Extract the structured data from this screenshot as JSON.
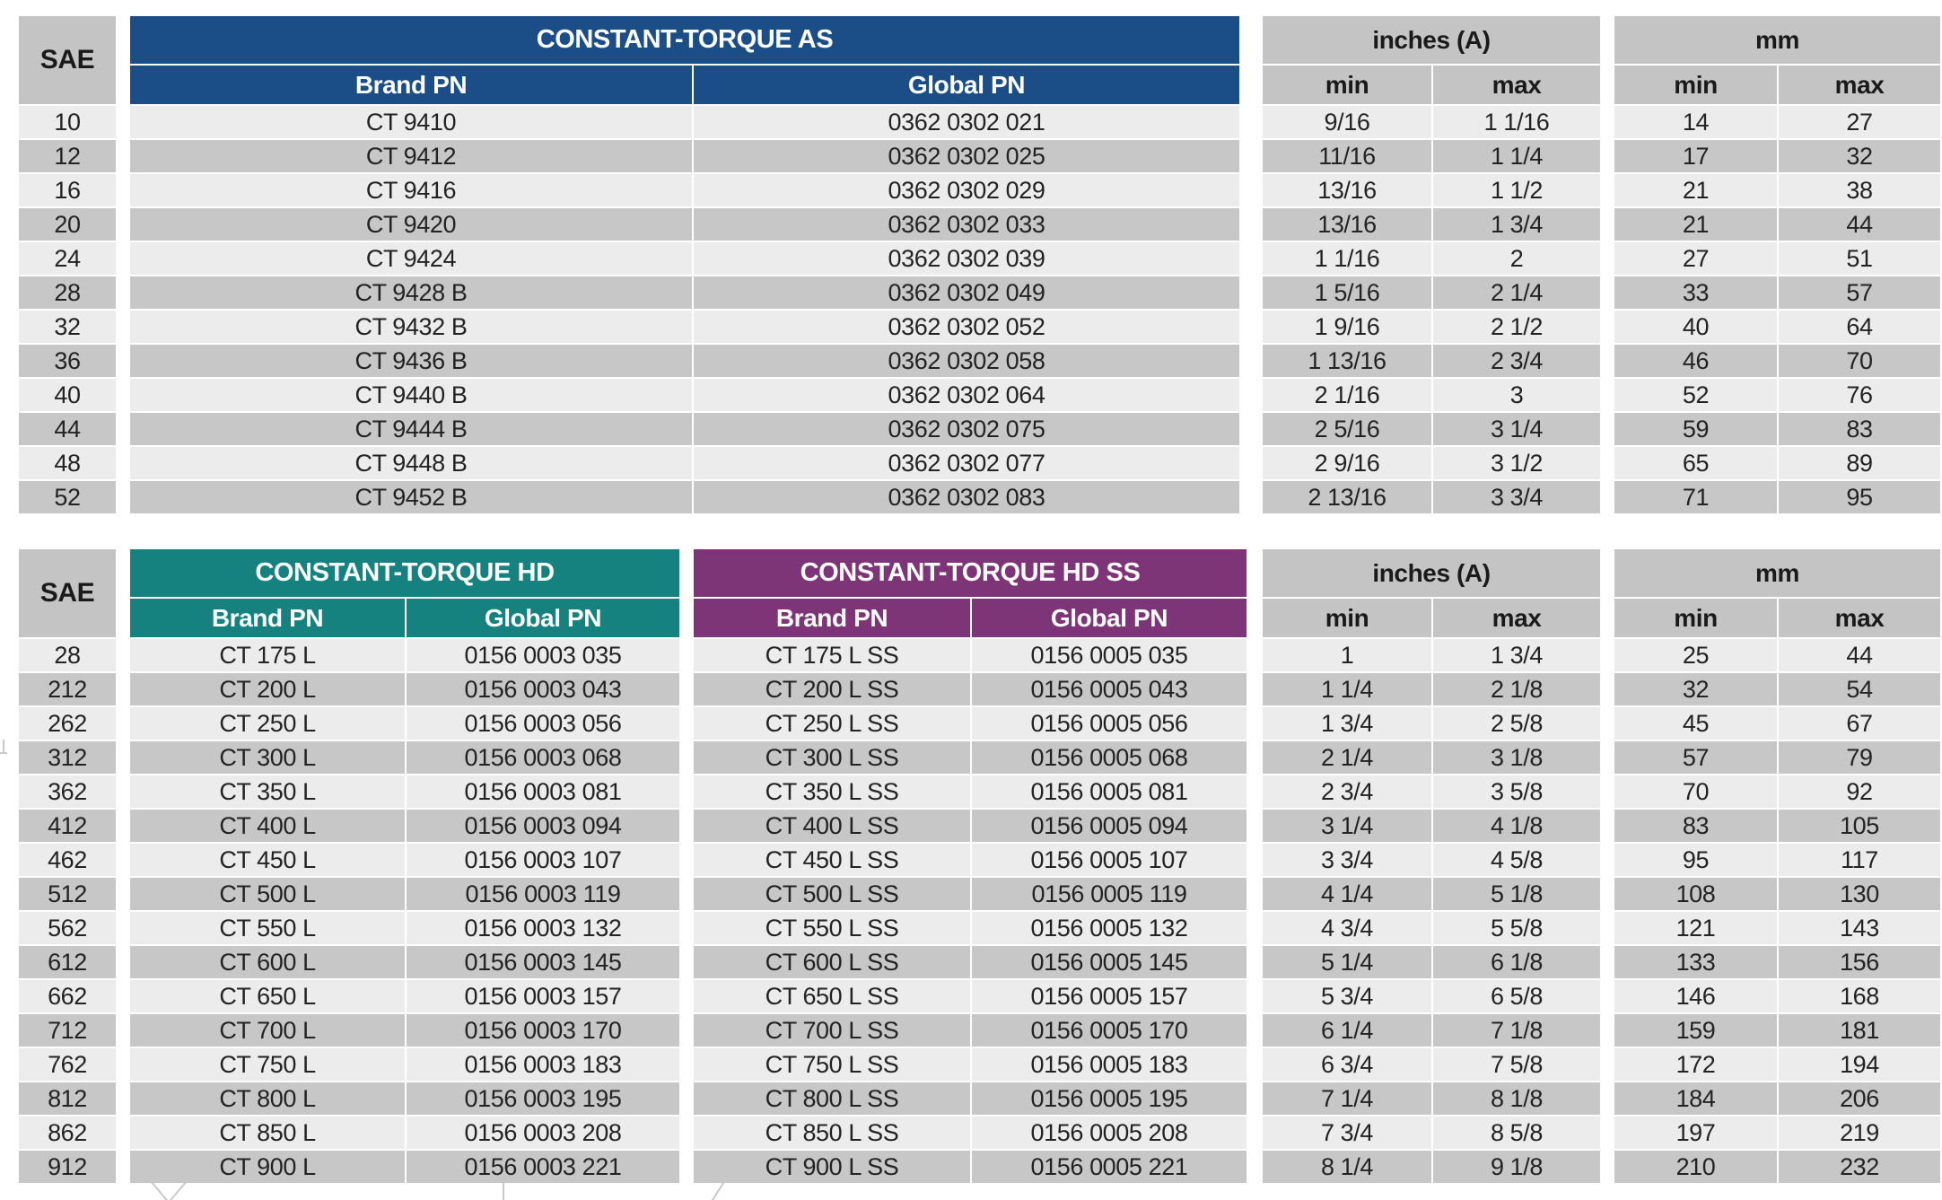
{
  "colors": {
    "blue": "#1b4e87",
    "teal": "#15827f",
    "purple": "#7d3578",
    "header-gray": "#c4c4c4",
    "row-light": "#ececec",
    "row-dark": "#c7c7c7",
    "text-dark": "#232323"
  },
  "table_as": {
    "sae_label": "SAE",
    "title": "CONSTANT-TORQUE AS",
    "brand_pn_label": "Brand PN",
    "global_pn_label": "Global PN",
    "inches_label": "inches (A)",
    "mm_label": "mm",
    "min_label": "min",
    "max_label": "max",
    "rows": [
      {
        "sae": "10",
        "brand_pn": "CT 9410",
        "global_pn": "0362 0302 021",
        "in_min": "9/16",
        "in_max": "1 1/16",
        "mm_min": "14",
        "mm_max": "27"
      },
      {
        "sae": "12",
        "brand_pn": "CT 9412",
        "global_pn": "0362 0302 025",
        "in_min": "11/16",
        "in_max": "1 1/4",
        "mm_min": "17",
        "mm_max": "32"
      },
      {
        "sae": "16",
        "brand_pn": "CT 9416",
        "global_pn": "0362 0302 029",
        "in_min": "13/16",
        "in_max": "1 1/2",
        "mm_min": "21",
        "mm_max": "38"
      },
      {
        "sae": "20",
        "brand_pn": "CT 9420",
        "global_pn": "0362 0302 033",
        "in_min": "13/16",
        "in_max": "1 3/4",
        "mm_min": "21",
        "mm_max": "44"
      },
      {
        "sae": "24",
        "brand_pn": "CT 9424",
        "global_pn": "0362 0302 039",
        "in_min": "1 1/16",
        "in_max": "2",
        "mm_min": "27",
        "mm_max": "51"
      },
      {
        "sae": "28",
        "brand_pn": "CT 9428 B",
        "global_pn": "0362 0302 049",
        "in_min": "1 5/16",
        "in_max": "2 1/4",
        "mm_min": "33",
        "mm_max": "57"
      },
      {
        "sae": "32",
        "brand_pn": "CT 9432 B",
        "global_pn": "0362 0302 052",
        "in_min": "1 9/16",
        "in_max": "2 1/2",
        "mm_min": "40",
        "mm_max": "64"
      },
      {
        "sae": "36",
        "brand_pn": "CT 9436 B",
        "global_pn": "0362 0302 058",
        "in_min": "1 13/16",
        "in_max": "2 3/4",
        "mm_min": "46",
        "mm_max": "70"
      },
      {
        "sae": "40",
        "brand_pn": "CT 9440 B",
        "global_pn": "0362 0302 064",
        "in_min": "2 1/16",
        "in_max": "3",
        "mm_min": "52",
        "mm_max": "76"
      },
      {
        "sae": "44",
        "brand_pn": "CT 9444 B",
        "global_pn": "0362 0302 075",
        "in_min": "2 5/16",
        "in_max": "3 1/4",
        "mm_min": "59",
        "mm_max": "83"
      },
      {
        "sae": "48",
        "brand_pn": "CT 9448 B",
        "global_pn": "0362 0302 077",
        "in_min": "2 9/16",
        "in_max": "3 1/2",
        "mm_min": "65",
        "mm_max": "89"
      },
      {
        "sae": "52",
        "brand_pn": "CT 9452 B",
        "global_pn": "0362 0302 083",
        "in_min": "2 13/16",
        "in_max": "3 3/4",
        "mm_min": "71",
        "mm_max": "95"
      }
    ]
  },
  "table_hd": {
    "sae_label": "SAE",
    "hd_title": "CONSTANT-TORQUE HD",
    "ss_title": "CONSTANT-TORQUE HD SS",
    "brand_pn_label": "Brand PN",
    "global_pn_label": "Global PN",
    "inches_label": "inches (A)",
    "mm_label": "mm",
    "min_label": "min",
    "max_label": "max",
    "rows": [
      {
        "sae": "28",
        "hd_brand_pn": "CT 175 L",
        "hd_global_pn": "0156 0003 035",
        "ss_brand_pn": "CT 175 L SS",
        "ss_global_pn": "0156 0005 035",
        "in_min": "1",
        "in_max": "1 3/4",
        "mm_min": "25",
        "mm_max": "44"
      },
      {
        "sae": "212",
        "hd_brand_pn": "CT 200 L",
        "hd_global_pn": "0156 0003 043",
        "ss_brand_pn": "CT 200 L SS",
        "ss_global_pn": "0156 0005 043",
        "in_min": "1 1/4",
        "in_max": "2 1/8",
        "mm_min": "32",
        "mm_max": "54"
      },
      {
        "sae": "262",
        "hd_brand_pn": "CT 250 L",
        "hd_global_pn": "0156 0003 056",
        "ss_brand_pn": "CT 250 L SS",
        "ss_global_pn": "0156 0005 056",
        "in_min": "1 3/4",
        "in_max": "2 5/8",
        "mm_min": "45",
        "mm_max": "67"
      },
      {
        "sae": "312",
        "hd_brand_pn": "CT 300 L",
        "hd_global_pn": "0156 0003 068",
        "ss_brand_pn": "CT 300 L SS",
        "ss_global_pn": "0156 0005 068",
        "in_min": "2 1/4",
        "in_max": "3 1/8",
        "mm_min": "57",
        "mm_max": "79"
      },
      {
        "sae": "362",
        "hd_brand_pn": "CT 350 L",
        "hd_global_pn": "0156 0003 081",
        "ss_brand_pn": "CT 350 L SS",
        "ss_global_pn": "0156 0005 081",
        "in_min": "2 3/4",
        "in_max": "3 5/8",
        "mm_min": "70",
        "mm_max": "92"
      },
      {
        "sae": "412",
        "hd_brand_pn": "CT 400 L",
        "hd_global_pn": "0156 0003 094",
        "ss_brand_pn": "CT 400 L SS",
        "ss_global_pn": "0156 0005 094",
        "in_min": "3 1/4",
        "in_max": "4 1/8",
        "mm_min": "83",
        "mm_max": "105"
      },
      {
        "sae": "462",
        "hd_brand_pn": "CT 450 L",
        "hd_global_pn": "0156 0003 107",
        "ss_brand_pn": "CT 450 L SS",
        "ss_global_pn": "0156 0005 107",
        "in_min": "3 3/4",
        "in_max": "4 5/8",
        "mm_min": "95",
        "mm_max": "117"
      },
      {
        "sae": "512",
        "hd_brand_pn": "CT 500 L",
        "hd_global_pn": "0156 0003 119",
        "ss_brand_pn": "CT 500 L SS",
        "ss_global_pn": "0156 0005 119",
        "in_min": "4 1/4",
        "in_max": "5 1/8",
        "mm_min": "108",
        "mm_max": "130"
      },
      {
        "sae": "562",
        "hd_brand_pn": "CT 550 L",
        "hd_global_pn": "0156 0003 132",
        "ss_brand_pn": "CT 550 L SS",
        "ss_global_pn": "0156 0005 132",
        "in_min": "4 3/4",
        "in_max": "5 5/8",
        "mm_min": "121",
        "mm_max": "143"
      },
      {
        "sae": "612",
        "hd_brand_pn": "CT 600 L",
        "hd_global_pn": "0156 0003 145",
        "ss_brand_pn": "CT 600 L SS",
        "ss_global_pn": "0156 0005 145",
        "in_min": "5 1/4",
        "in_max": "6 1/8",
        "mm_min": "133",
        "mm_max": "156"
      },
      {
        "sae": "662",
        "hd_brand_pn": "CT 650 L",
        "hd_global_pn": "0156 0003 157",
        "ss_brand_pn": "CT 650 L SS",
        "ss_global_pn": "0156 0005 157",
        "in_min": "5 3/4",
        "in_max": "6 5/8",
        "mm_min": "146",
        "mm_max": "168"
      },
      {
        "sae": "712",
        "hd_brand_pn": "CT 700 L",
        "hd_global_pn": "0156 0003 170",
        "ss_brand_pn": "CT 700 L SS",
        "ss_global_pn": "0156 0005 170",
        "in_min": "6 1/4",
        "in_max": "7 1/8",
        "mm_min": "159",
        "mm_max": "181"
      },
      {
        "sae": "762",
        "hd_brand_pn": "CT 750 L",
        "hd_global_pn": "0156 0003 183",
        "ss_brand_pn": "CT 750 L SS",
        "ss_global_pn": "0156 0005 183",
        "in_min": "6 3/4",
        "in_max": "7 5/8",
        "mm_min": "172",
        "mm_max": "194"
      },
      {
        "sae": "812",
        "hd_brand_pn": "CT 800 L",
        "hd_global_pn": "0156 0003 195",
        "ss_brand_pn": "CT 800 L SS",
        "ss_global_pn": "0156 0005 195",
        "in_min": "7 1/4",
        "in_max": "8 1/8",
        "mm_min": "184",
        "mm_max": "206"
      },
      {
        "sae": "862",
        "hd_brand_pn": "CT 850 L",
        "hd_global_pn": "0156 0003 208",
        "ss_brand_pn": "CT 850 L SS",
        "ss_global_pn": "0156 0005 208",
        "in_min": "7 3/4",
        "in_max": "8 5/8",
        "mm_min": "197",
        "mm_max": "219"
      },
      {
        "sae": "912",
        "hd_brand_pn": "CT 900 L",
        "hd_global_pn": "0156 0003 221",
        "ss_brand_pn": "CT 900 L SS",
        "ss_global_pn": "0156 0005 221",
        "in_min": "8 1/4",
        "in_max": "9 1/8",
        "mm_min": "210",
        "mm_max": "232"
      }
    ]
  }
}
